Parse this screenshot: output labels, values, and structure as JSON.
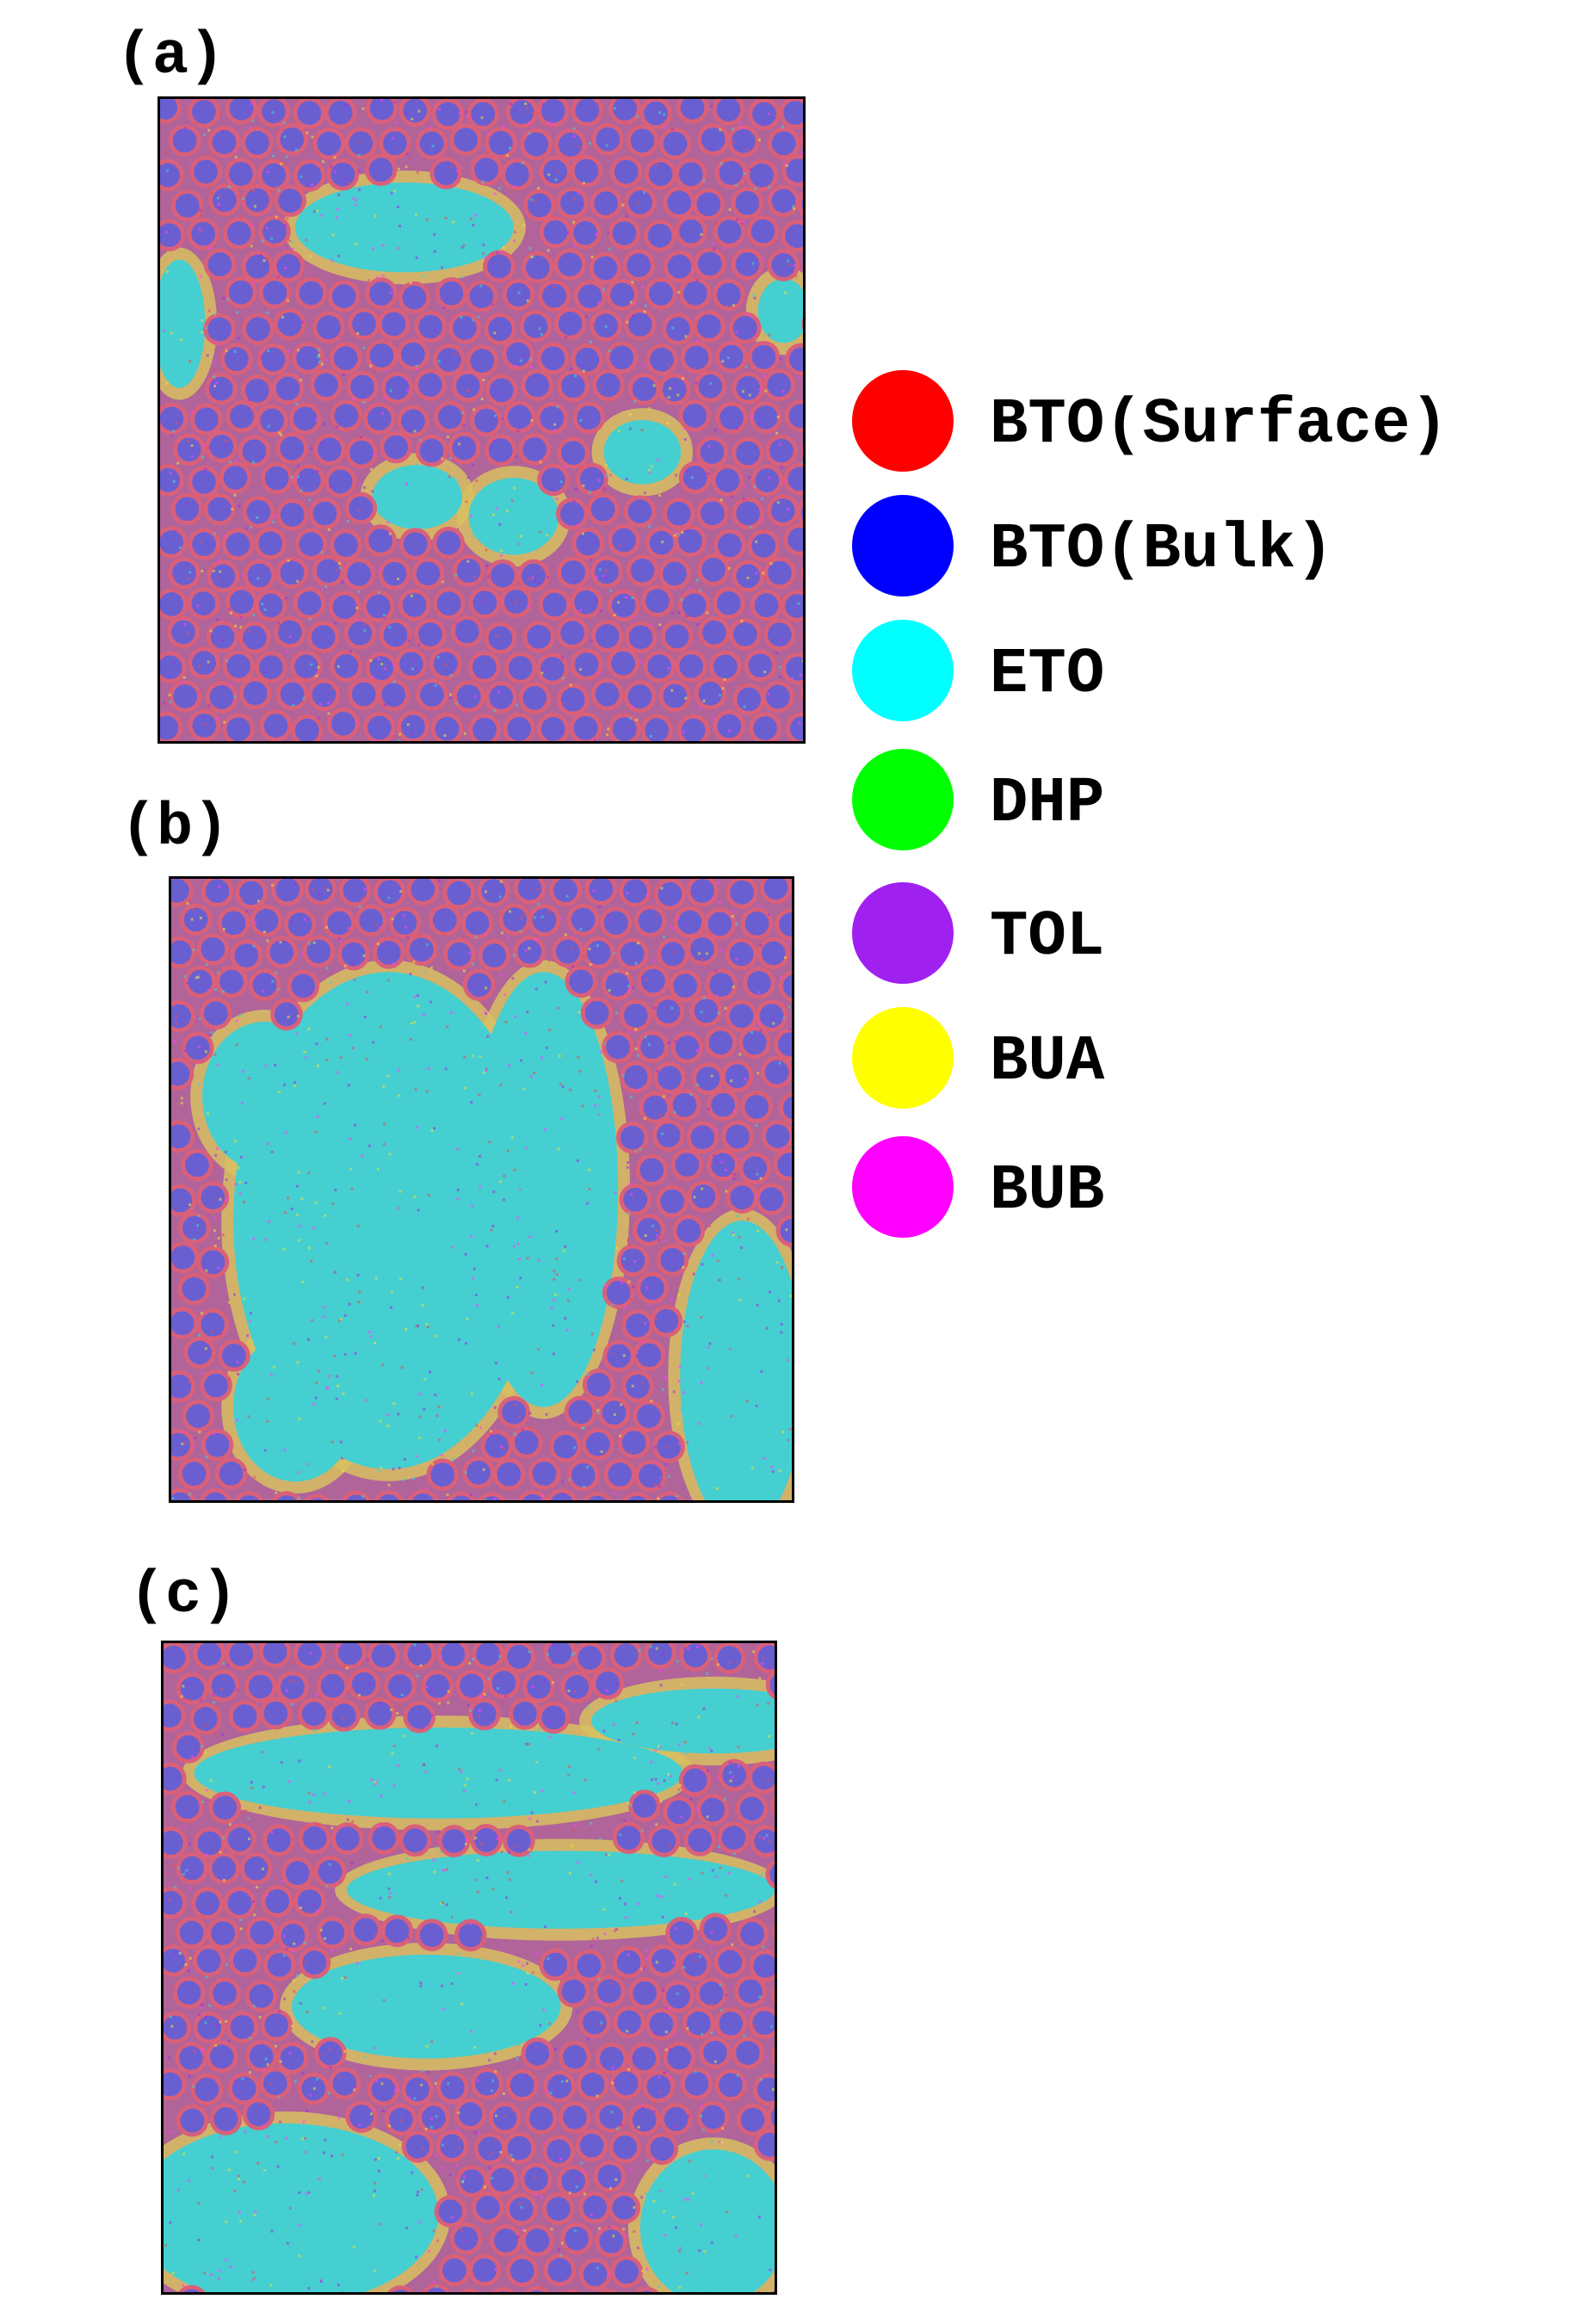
{
  "panels": [
    {
      "label": "(a)"
    },
    {
      "label": "(b)"
    },
    {
      "label": "(c)"
    }
  ],
  "legend": [
    {
      "label": "BTO(Surface)",
      "color": "#ff0000"
    },
    {
      "label": "BTO(Bulk)",
      "color": "#0000ff"
    },
    {
      "label": "ETO",
      "color": "#00ffff"
    },
    {
      "label": "DHP",
      "color": "#00ff00"
    },
    {
      "label": "TOL",
      "color": "#a020f0"
    },
    {
      "label": "BUA",
      "color": "#ffff00"
    },
    {
      "label": "BUB",
      "color": "#ff00ff"
    }
  ]
}
